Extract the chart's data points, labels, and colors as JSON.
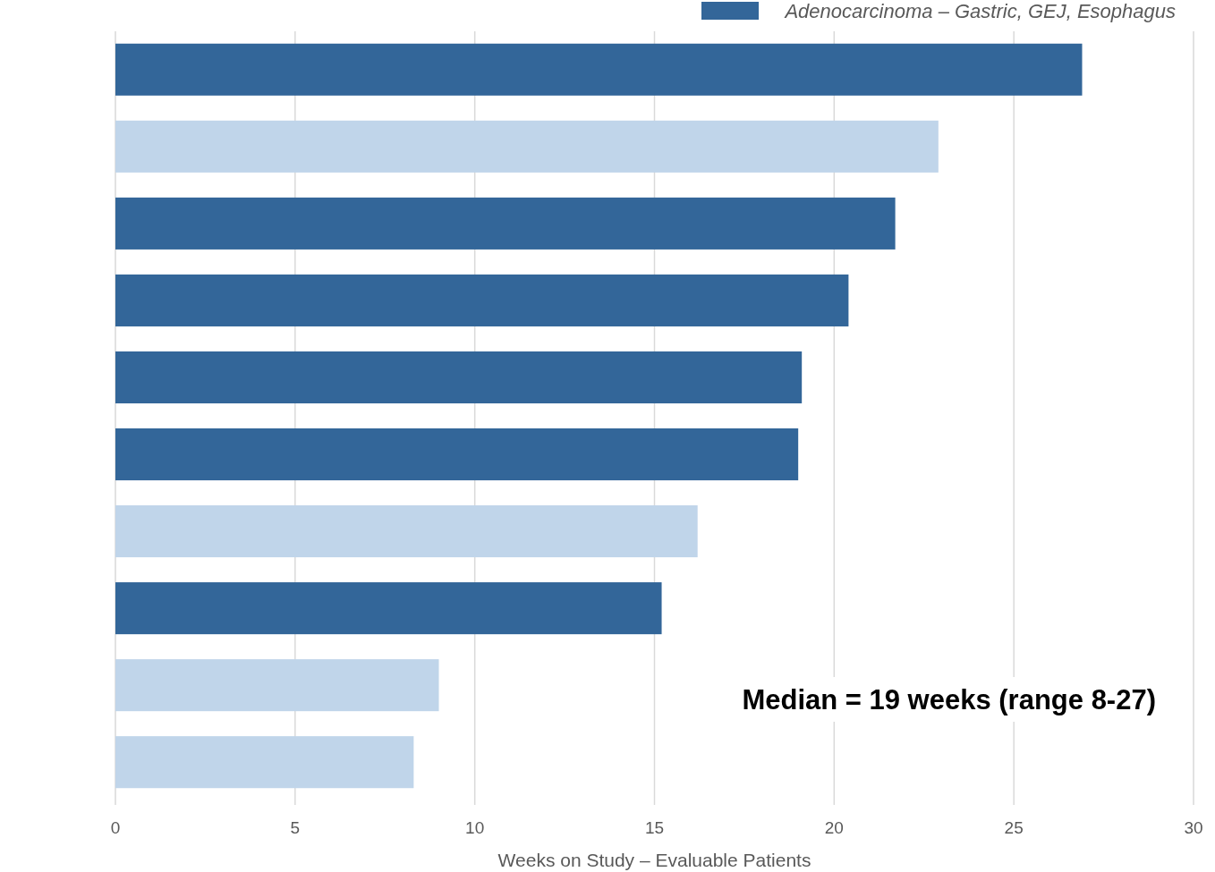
{
  "chart_data": {
    "type": "bar",
    "orientation": "horizontal",
    "xlabel": "Weeks on Study – Evaluable Patients",
    "categories": [
      null,
      null,
      null,
      null,
      null,
      null,
      null,
      null,
      null,
      null
    ],
    "series": [
      {
        "name": "Adenocarcinoma – Gastric, GEJ, Esophagus",
        "color": "#336699",
        "values": [
          26.9,
          null,
          21.7,
          20.4,
          19.1,
          19,
          null,
          15.2,
          null,
          null
        ]
      },
      {
        "color": "#c0d5ea",
        "values": [
          null,
          22.9,
          null,
          null,
          null,
          null,
          16.2,
          null,
          9,
          8.3
        ]
      }
    ],
    "xlim": [
      0,
      30
    ],
    "xticks": [
      0,
      5,
      10,
      15,
      20,
      25,
      30
    ],
    "grid": "x",
    "legend": "top right",
    "tick_labels": "x",
    "annotations": [
      "Median = 19 weeks (range 8-27)"
    ]
  }
}
